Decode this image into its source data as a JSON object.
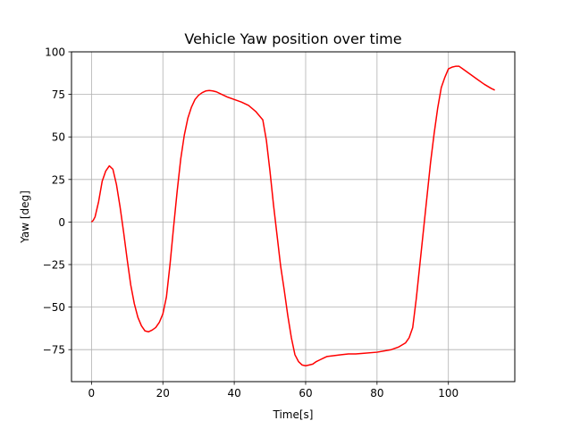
{
  "chart_data": {
    "type": "line",
    "title": "Vehicle Yaw position over time",
    "xlabel": "Time[s]",
    "ylabel": "Yaw [deg]",
    "xlim": [
      -5.6,
      118.6
    ],
    "ylim": [
      -93.8,
      100
    ],
    "xticks": [
      0,
      20,
      40,
      60,
      80,
      100
    ],
    "yticks": [
      -75,
      -50,
      -25,
      0,
      25,
      50,
      75,
      100
    ],
    "grid": true,
    "series": [
      {
        "color": "#ff0000",
        "x": [
          0,
          0.5,
          1,
          2,
          3,
          4,
          5,
          6,
          7,
          8,
          9,
          10,
          11,
          12,
          13,
          14,
          15,
          16,
          17,
          18,
          19,
          20,
          21,
          22,
          23,
          24,
          25,
          26,
          27,
          28,
          29,
          30,
          31,
          32,
          33,
          34,
          35,
          36,
          37,
          38,
          40,
          42,
          44,
          46,
          48,
          49,
          50,
          51,
          52,
          53,
          54,
          55,
          56,
          57,
          58,
          59,
          60,
          61,
          62,
          63,
          64,
          65,
          66,
          68,
          70,
          72,
          74,
          76,
          80,
          84,
          86,
          88,
          89,
          90,
          91,
          92,
          93,
          94,
          95,
          96,
          97,
          98,
          99,
          100,
          101,
          102,
          103,
          104,
          105,
          106,
          108,
          110,
          112,
          113
        ],
        "y": [
          0,
          1,
          3,
          12,
          24,
          30,
          33,
          31,
          22,
          9,
          -6,
          -22,
          -37,
          -48,
          -56,
          -61,
          -64,
          -64.5,
          -63.5,
          -62,
          -59,
          -54,
          -44,
          -25,
          -3,
          18,
          37,
          51,
          61,
          67.5,
          72,
          74.5,
          76,
          77,
          77.3,
          77,
          76.5,
          75.5,
          74.5,
          73.5,
          72,
          70.5,
          68.5,
          65,
          60,
          48,
          30,
          10,
          -8,
          -26,
          -40,
          -55,
          -68,
          -78,
          -82,
          -84,
          -84.5,
          -84,
          -83.5,
          -82,
          -81,
          -80,
          -79,
          -78.5,
          -78,
          -77.5,
          -77.5,
          -77.2,
          -76.5,
          -75,
          -73.5,
          -71,
          -68,
          -62,
          -45,
          -25,
          -5,
          15,
          35,
          52,
          67,
          79,
          85,
          90,
          91,
          91.5,
          91.5,
          90,
          88.5,
          87,
          84,
          81,
          78.5,
          77.5
        ]
      }
    ]
  }
}
